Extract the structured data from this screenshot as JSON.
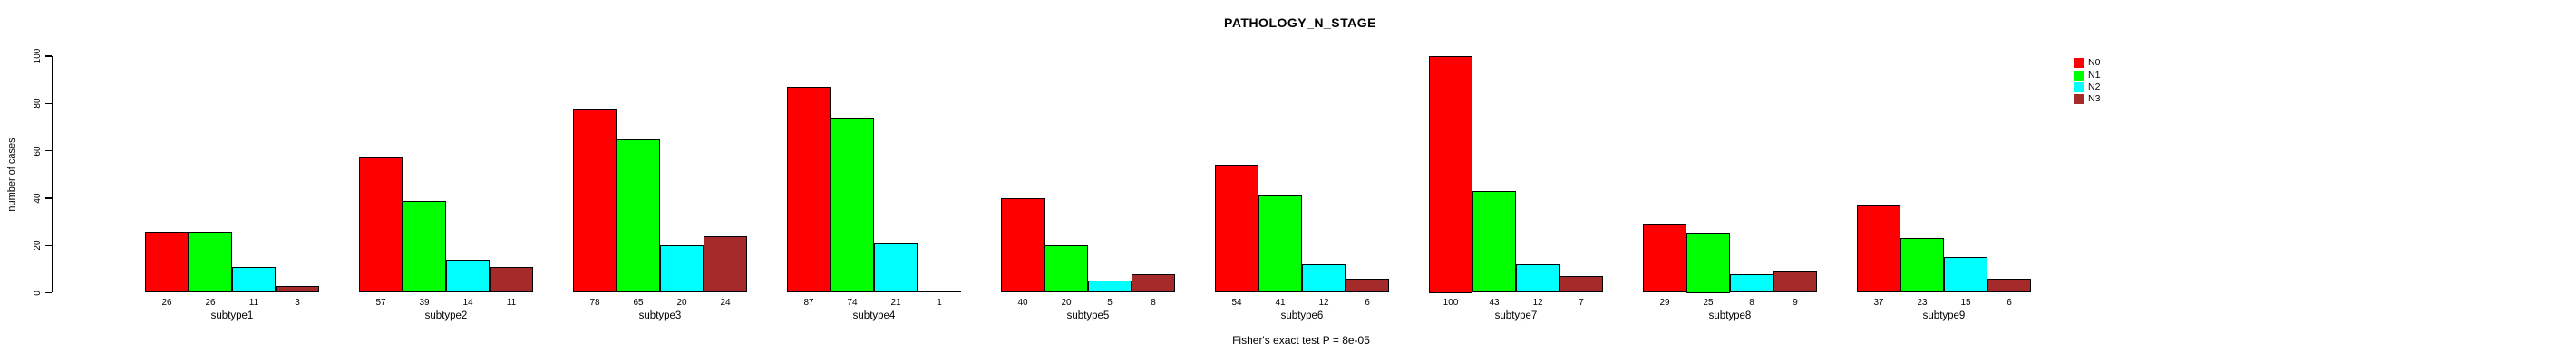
{
  "figure": {
    "title": "PATHOLOGY_N_STAGE",
    "annotation": "Fisher's exact test P = 8e-05"
  },
  "chart_data": {
    "type": "bar",
    "title": "PATHOLOGY_N_STAGE",
    "xlabel": "",
    "ylabel": "number of cases",
    "ylim": [
      0,
      100
    ],
    "yticks": [
      0,
      20,
      40,
      60,
      80,
      100
    ],
    "grid": false,
    "legend_position": "right",
    "bar_value_labels_shown": true,
    "annotation": "Fisher's exact test P = 8e-05",
    "categories": [
      "subtype1",
      "subtype2",
      "subtype3",
      "subtype4",
      "subtype5",
      "subtype6",
      "subtype7",
      "subtype8",
      "subtype9"
    ],
    "series": [
      {
        "name": "N0",
        "color": "#FF0000",
        "values": [
          26,
          57,
          78,
          87,
          40,
          54,
          100,
          29,
          37
        ]
      },
      {
        "name": "N1",
        "color": "#00FF00",
        "values": [
          26,
          39,
          65,
          74,
          20,
          41,
          43,
          25,
          23
        ]
      },
      {
        "name": "N2",
        "color": "#00FFFF",
        "values": [
          11,
          14,
          20,
          21,
          5,
          12,
          12,
          8,
          15
        ]
      },
      {
        "name": "N3",
        "color": "#A52A2A",
        "values": [
          3,
          11,
          24,
          1,
          8,
          6,
          7,
          9,
          6
        ]
      }
    ]
  }
}
